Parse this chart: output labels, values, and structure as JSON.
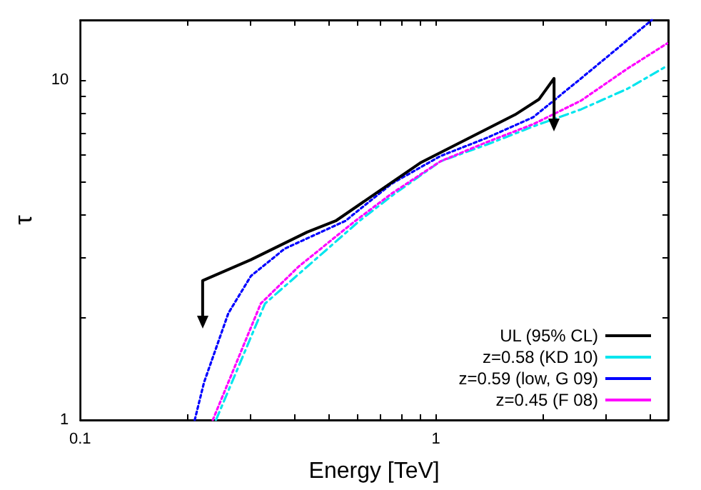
{
  "chart_data": {
    "type": "line",
    "xlabel": "Energy [TeV]",
    "ylabel": "τ",
    "log": "xy",
    "xlim": [
      0.1,
      4.5
    ],
    "ylim": [
      1,
      15
    ],
    "xticks": [
      0.1,
      {
        "value": 0.2,
        "label": null
      },
      {
        "value": 0.3,
        "label": null
      },
      {
        "value": 0.4,
        "label": null
      },
      {
        "value": 0.5,
        "label": null
      },
      {
        "value": 0.6,
        "label": null
      },
      {
        "value": 0.7,
        "label": null
      },
      {
        "value": 0.8,
        "label": null
      },
      {
        "value": 0.9,
        "label": null
      },
      1,
      {
        "value": 2,
        "label": null
      },
      {
        "value": 3,
        "label": null
      },
      {
        "value": 4,
        "label": null
      }
    ],
    "yticks": [
      1,
      {
        "value": 2,
        "label": null
      },
      {
        "value": 3,
        "label": null
      },
      {
        "value": 4,
        "label": null
      },
      {
        "value": 5,
        "label": null
      },
      {
        "value": 6,
        "label": null
      },
      {
        "value": 7,
        "label": null
      },
      {
        "value": 8,
        "label": null
      },
      {
        "value": 9,
        "label": null
      },
      10
    ],
    "grid": false,
    "legend": "bottom right",
    "marker": "none",
    "series": [
      {
        "name": "UL (95% CL)",
        "color": "#000000",
        "line_style": "solid",
        "x": [
          0.221,
          0.221,
          0.302,
          0.435,
          0.523,
          0.904,
          1.67,
          1.95,
          2.15,
          2.15
        ],
        "values": [
          2.0,
          2.57,
          2.96,
          3.57,
          3.85,
          5.7,
          7.9,
          8.77,
          10.1,
          7.6
        ]
      },
      {
        "name": "z=0.58 (KD 10)",
        "color": "#00e5ee",
        "line_style": "dashed",
        "x": [
          0.241,
          0.331,
          0.61,
          0.76,
          1.03,
          1.39,
          1.88,
          2.56,
          3.46,
          4.47
        ],
        "values": [
          1,
          2.2,
          3.85,
          4.6,
          5.76,
          6.45,
          7.3,
          8.19,
          9.42,
          11.0
        ]
      },
      {
        "name": "z=0.59 (low, G 09)",
        "color": "#0000ff",
        "line_style": "dotted",
        "x": [
          0.21,
          0.223,
          0.261,
          0.302,
          0.376,
          0.557,
          0.753,
          1.03,
          1.39,
          1.88,
          2.56,
          4.05
        ],
        "values": [
          1,
          1.29,
          2.06,
          2.65,
          3.19,
          3.85,
          4.96,
          5.97,
          6.75,
          7.77,
          10.1,
          15
        ]
      },
      {
        "name": "z=0.45 (F 08)",
        "color": "#ff00ff",
        "line_style": "dotted",
        "x": [
          0.236,
          0.322,
          0.412,
          0.594,
          0.753,
          1.03,
          1.39,
          1.88,
          2.56,
          3.46,
          4.47
        ],
        "values": [
          1,
          2.2,
          2.83,
          3.85,
          4.64,
          5.76,
          6.56,
          7.41,
          8.69,
          10.8,
          12.8
        ]
      }
    ]
  }
}
